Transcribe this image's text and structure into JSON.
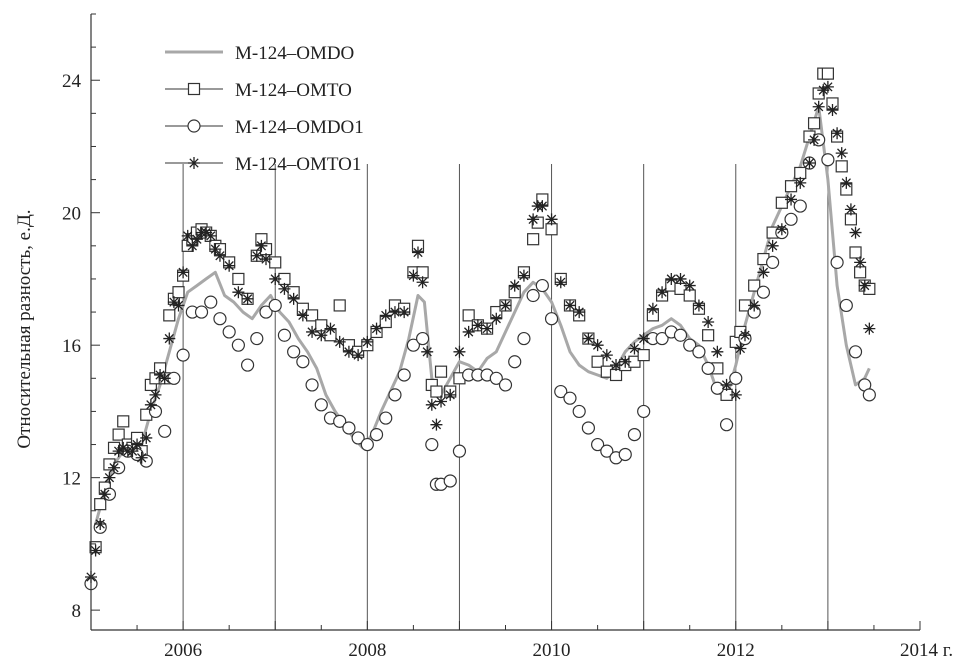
{
  "chart_data": {
    "type": "line",
    "ylabel": "Относительная разность, е.Д.",
    "xlim": [
      2005.0,
      2014.0
    ],
    "ylim": [
      7.4,
      26.0
    ],
    "xticks": [
      {
        "value": 2006,
        "label": "2006"
      },
      {
        "value": 2008,
        "label": "2008"
      },
      {
        "value": 2010,
        "label": "2010"
      },
      {
        "value": 2012,
        "label": "2012"
      },
      {
        "value": 2014,
        "label": "2014 г."
      }
    ],
    "yticks": [
      {
        "value": 8,
        "label": "8"
      },
      {
        "value": 12,
        "label": "12"
      },
      {
        "value": 16,
        "label": "16"
      },
      {
        "value": 20,
        "label": "20"
      },
      {
        "value": 24,
        "label": "24"
      }
    ],
    "vertical_gridlines": [
      2006,
      2007,
      2008,
      2009,
      2010,
      2011,
      2012,
      2013
    ],
    "grid": "vertical yearly lines",
    "legend_position": "top-left",
    "series": [
      {
        "name": "M-124–OMDO",
        "style": "line",
        "color": "#a8a8a8",
        "x": [
          2005.05,
          2005.15,
          2005.25,
          2005.35,
          2005.45,
          2005.55,
          2005.65,
          2005.75,
          2005.85,
          2005.95,
          2006.05,
          2006.15,
          2006.25,
          2006.35,
          2006.45,
          2006.55,
          2006.65,
          2006.75,
          2006.85,
          2006.95,
          2007.05,
          2007.15,
          2007.25,
          2007.35,
          2007.45,
          2007.55,
          2007.65,
          2007.75,
          2007.85,
          2007.95,
          2008.05,
          2008.15,
          2008.25,
          2008.35,
          2008.45,
          2008.55,
          2008.62,
          2008.7,
          2008.8,
          2008.9,
          2009.0,
          2009.1,
          2009.2,
          2009.3,
          2009.4,
          2009.5,
          2009.6,
          2009.7,
          2009.8,
          2009.9,
          2010.0,
          2010.1,
          2010.2,
          2010.3,
          2010.4,
          2010.5,
          2010.6,
          2010.7,
          2010.8,
          2010.9,
          2011.0,
          2011.1,
          2011.2,
          2011.3,
          2011.4,
          2011.5,
          2011.6,
          2011.7,
          2011.8,
          2011.9,
          2012.0,
          2012.1,
          2012.2,
          2012.3,
          2012.4,
          2012.5,
          2012.6,
          2012.7,
          2012.8,
          2012.9,
          2013.0,
          2013.1,
          2013.2,
          2013.3,
          2013.4,
          2013.45
        ],
        "y": [
          10.6,
          11.6,
          12.4,
          12.8,
          13.2,
          13.0,
          14.0,
          14.8,
          15.8,
          16.8,
          17.6,
          17.8,
          18.0,
          18.2,
          17.5,
          17.3,
          17.0,
          16.8,
          17.2,
          17.5,
          17.0,
          16.7,
          16.2,
          15.8,
          15.3,
          14.5,
          14.0,
          13.6,
          13.2,
          12.9,
          13.3,
          14.0,
          14.6,
          15.2,
          16.2,
          17.5,
          17.3,
          15.0,
          14.5,
          15.0,
          15.5,
          15.4,
          15.2,
          15.6,
          15.8,
          16.4,
          17.0,
          17.6,
          17.9,
          17.7,
          17.3,
          16.6,
          15.8,
          15.4,
          15.2,
          15.1,
          15.0,
          15.3,
          15.8,
          16.1,
          16.3,
          16.5,
          16.6,
          16.8,
          16.6,
          16.2,
          16.0,
          15.4,
          14.6,
          14.4,
          15.4,
          16.6,
          17.6,
          18.6,
          19.6,
          20.2,
          20.8,
          21.4,
          22.3,
          23.2,
          21.0,
          17.8,
          16.0,
          14.8,
          15.0,
          15.3
        ]
      },
      {
        "name": "M-124–OMTO",
        "style": "markers",
        "marker": "square",
        "x": [
          2005.05,
          2005.1,
          2005.15,
          2005.2,
          2005.25,
          2005.3,
          2005.35,
          2005.4,
          2005.45,
          2005.5,
          2005.55,
          2005.6,
          2005.65,
          2005.7,
          2005.75,
          2005.8,
          2005.85,
          2005.9,
          2005.95,
          2006.0,
          2006.05,
          2006.1,
          2006.15,
          2006.2,
          2006.25,
          2006.3,
          2006.35,
          2006.4,
          2006.5,
          2006.6,
          2006.7,
          2006.8,
          2006.85,
          2006.9,
          2007.0,
          2007.1,
          2007.2,
          2007.3,
          2007.4,
          2007.5,
          2007.6,
          2007.7,
          2007.8,
          2007.9,
          2008.0,
          2008.1,
          2008.2,
          2008.3,
          2008.4,
          2008.5,
          2008.55,
          2008.6,
          2008.7,
          2008.75,
          2008.8,
          2008.9,
          2009.0,
          2009.1,
          2009.2,
          2009.3,
          2009.4,
          2009.5,
          2009.6,
          2009.7,
          2009.8,
          2009.85,
          2009.9,
          2010.0,
          2010.1,
          2010.2,
          2010.3,
          2010.4,
          2010.5,
          2010.6,
          2010.7,
          2010.8,
          2010.9,
          2011.0,
          2011.1,
          2011.2,
          2011.3,
          2011.4,
          2011.5,
          2011.6,
          2011.7,
          2011.8,
          2011.9,
          2012.0,
          2012.05,
          2012.1,
          2012.2,
          2012.3,
          2012.4,
          2012.5,
          2012.6,
          2012.7,
          2012.8,
          2012.85,
          2012.9,
          2012.95,
          2013.0,
          2013.05,
          2013.1,
          2013.15,
          2013.2,
          2013.25,
          2013.3,
          2013.35,
          2013.4,
          2013.45
        ],
        "y": [
          9.9,
          11.2,
          11.7,
          12.4,
          12.9,
          13.3,
          13.7,
          13.0,
          12.9,
          13.2,
          12.8,
          13.9,
          14.8,
          15.0,
          15.3,
          15.0,
          16.9,
          17.4,
          17.6,
          18.1,
          19.0,
          19.2,
          19.4,
          19.5,
          19.4,
          19.3,
          19.0,
          18.9,
          18.5,
          18.0,
          17.4,
          18.7,
          19.2,
          18.9,
          18.5,
          18.0,
          17.6,
          17.1,
          16.9,
          16.6,
          16.3,
          17.2,
          16.0,
          15.8,
          16.0,
          16.4,
          16.7,
          17.2,
          17.1,
          18.2,
          19.0,
          18.2,
          14.8,
          14.6,
          15.2,
          14.6,
          15.0,
          16.9,
          16.6,
          16.5,
          17.0,
          17.2,
          17.6,
          18.2,
          19.2,
          19.7,
          20.4,
          19.5,
          18.0,
          17.2,
          16.9,
          16.2,
          15.5,
          15.2,
          15.1,
          15.4,
          15.5,
          15.7,
          16.9,
          17.5,
          17.8,
          17.7,
          17.5,
          17.1,
          16.3,
          15.3,
          14.5,
          16.1,
          16.4,
          17.2,
          17.8,
          18.6,
          19.4,
          20.3,
          20.8,
          21.2,
          22.3,
          22.7,
          23.6,
          24.2,
          24.2,
          23.3,
          22.3,
          21.4,
          20.7,
          19.8,
          18.8,
          18.2,
          17.8,
          17.7
        ]
      },
      {
        "name": "M-124–OMDO1",
        "style": "markers",
        "marker": "circle",
        "x": [
          2005.0,
          2005.1,
          2005.2,
          2005.3,
          2005.4,
          2005.5,
          2005.6,
          2005.7,
          2005.8,
          2005.9,
          2006.0,
          2006.1,
          2006.2,
          2006.3,
          2006.4,
          2006.5,
          2006.6,
          2006.7,
          2006.8,
          2006.9,
          2007.0,
          2007.1,
          2007.2,
          2007.3,
          2007.4,
          2007.5,
          2007.6,
          2007.7,
          2007.8,
          2007.9,
          2008.0,
          2008.1,
          2008.2,
          2008.3,
          2008.4,
          2008.5,
          2008.6,
          2008.7,
          2008.75,
          2008.8,
          2008.9,
          2009.0,
          2009.1,
          2009.2,
          2009.3,
          2009.4,
          2009.5,
          2009.6,
          2009.7,
          2009.8,
          2009.9,
          2010.0,
          2010.1,
          2010.2,
          2010.3,
          2010.4,
          2010.5,
          2010.6,
          2010.7,
          2010.8,
          2010.9,
          2011.0,
          2011.1,
          2011.2,
          2011.3,
          2011.4,
          2011.5,
          2011.6,
          2011.7,
          2011.8,
          2011.9,
          2012.0,
          2012.1,
          2012.2,
          2012.3,
          2012.4,
          2012.5,
          2012.6,
          2012.7,
          2012.8,
          2012.9,
          2013.0,
          2013.1,
          2013.2,
          2013.3,
          2013.4,
          2013.45
        ],
        "y": [
          8.8,
          10.5,
          11.5,
          12.3,
          12.8,
          12.7,
          12.5,
          14.0,
          13.4,
          15.0,
          15.7,
          17.0,
          17.0,
          17.3,
          16.8,
          16.4,
          16.0,
          15.4,
          16.2,
          17.0,
          17.2,
          16.3,
          15.8,
          15.5,
          14.8,
          14.2,
          13.8,
          13.7,
          13.5,
          13.2,
          13.0,
          13.3,
          13.8,
          14.5,
          15.1,
          16.0,
          16.2,
          13.0,
          11.8,
          11.8,
          11.9,
          12.8,
          15.1,
          15.1,
          15.1,
          15.0,
          14.8,
          15.5,
          16.2,
          17.5,
          17.8,
          16.8,
          14.6,
          14.4,
          14.0,
          13.5,
          13.0,
          12.8,
          12.6,
          12.7,
          13.3,
          14.0,
          16.2,
          16.2,
          16.4,
          16.3,
          16.0,
          15.8,
          15.3,
          14.7,
          13.6,
          15.0,
          16.2,
          17.0,
          17.6,
          18.5,
          19.4,
          19.8,
          20.2,
          21.5,
          22.2,
          21.6,
          18.5,
          17.2,
          15.8,
          14.8,
          14.5
        ]
      },
      {
        "name": "M-124–OMTO1",
        "style": "markers",
        "marker": "asterisk",
        "x": [
          2005.0,
          2005.05,
          2005.1,
          2005.15,
          2005.2,
          2005.25,
          2005.3,
          2005.35,
          2005.4,
          2005.45,
          2005.5,
          2005.55,
          2005.6,
          2005.65,
          2005.7,
          2005.75,
          2005.8,
          2005.85,
          2005.9,
          2005.95,
          2006.0,
          2006.05,
          2006.1,
          2006.15,
          2006.2,
          2006.25,
          2006.3,
          2006.35,
          2006.4,
          2006.5,
          2006.6,
          2006.7,
          2006.8,
          2006.85,
          2006.9,
          2007.0,
          2007.1,
          2007.2,
          2007.3,
          2007.4,
          2007.5,
          2007.6,
          2007.7,
          2007.8,
          2007.9,
          2008.0,
          2008.1,
          2008.2,
          2008.3,
          2008.4,
          2008.5,
          2008.55,
          2008.6,
          2008.65,
          2008.7,
          2008.75,
          2008.8,
          2008.9,
          2009.0,
          2009.1,
          2009.2,
          2009.3,
          2009.4,
          2009.5,
          2009.6,
          2009.7,
          2009.8,
          2009.85,
          2009.9,
          2010.0,
          2010.1,
          2010.2,
          2010.3,
          2010.4,
          2010.5,
          2010.6,
          2010.7,
          2010.8,
          2010.9,
          2011.0,
          2011.1,
          2011.2,
          2011.3,
          2011.4,
          2011.5,
          2011.6,
          2011.7,
          2011.8,
          2011.9,
          2012.0,
          2012.05,
          2012.1,
          2012.2,
          2012.3,
          2012.4,
          2012.5,
          2012.6,
          2012.7,
          2012.8,
          2012.85,
          2012.9,
          2012.95,
          2013.0,
          2013.05,
          2013.1,
          2013.15,
          2013.2,
          2013.25,
          2013.3,
          2013.35,
          2013.4,
          2013.45
        ],
        "y": [
          9.0,
          9.8,
          10.6,
          11.5,
          12.0,
          12.3,
          12.8,
          12.9,
          12.8,
          12.8,
          13.0,
          12.6,
          13.2,
          14.2,
          14.5,
          15.1,
          15.0,
          16.2,
          17.3,
          17.2,
          18.2,
          19.3,
          19.0,
          19.2,
          19.4,
          19.4,
          19.3,
          18.9,
          18.7,
          18.4,
          17.6,
          17.4,
          18.7,
          19.0,
          18.6,
          18.0,
          17.7,
          17.4,
          16.9,
          16.4,
          16.3,
          16.5,
          16.1,
          15.8,
          15.7,
          16.1,
          16.5,
          16.9,
          17.0,
          17.0,
          18.1,
          18.8,
          17.9,
          15.8,
          14.2,
          13.6,
          14.3,
          14.5,
          15.8,
          16.4,
          16.6,
          16.5,
          16.8,
          17.2,
          17.8,
          18.1,
          19.8,
          20.2,
          20.2,
          19.8,
          17.9,
          17.2,
          17.0,
          16.2,
          16.0,
          15.7,
          15.4,
          15.5,
          15.9,
          16.2,
          17.1,
          17.6,
          18.0,
          18.0,
          17.8,
          17.2,
          16.7,
          15.8,
          14.8,
          14.5,
          15.9,
          16.3,
          17.2,
          18.2,
          19.0,
          19.5,
          20.4,
          20.9,
          21.5,
          22.2,
          23.2,
          23.7,
          23.8,
          23.1,
          22.4,
          21.8,
          20.9,
          20.1,
          19.4,
          18.5,
          17.8,
          16.5
        ]
      }
    ]
  }
}
